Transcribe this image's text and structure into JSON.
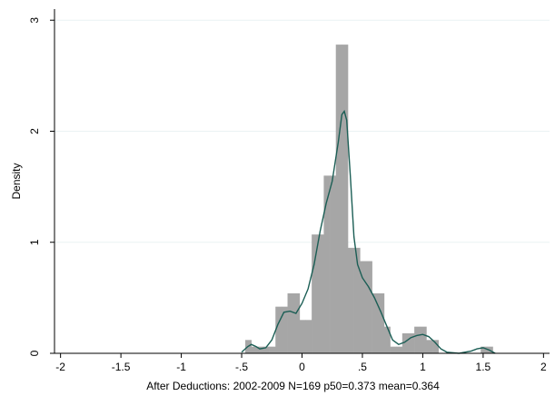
{
  "chart_data": {
    "type": "bar",
    "subtype": "histogram-with-density",
    "xlabel": "After Deductions: 2002-2009 N=169 p50=0.373 mean=0.364",
    "ylabel": "Density",
    "xlim": [
      -2.05,
      2.05
    ],
    "ylim": [
      0,
      3.1
    ],
    "x_ticks": [
      -2,
      -1.5,
      -1,
      -0.5,
      0,
      0.5,
      1,
      1.5,
      2
    ],
    "x_tick_labels": [
      "-2",
      "-1.5",
      "-1",
      "-.5",
      "0",
      ".5",
      "1",
      "1.5",
      "2"
    ],
    "y_ticks": [
      0,
      1,
      2,
      3
    ],
    "y_tick_labels": [
      "0",
      "1",
      "2",
      "3"
    ],
    "grid": true,
    "colors": {
      "bars": "#a6a6a6",
      "density": "#1b5e55",
      "grid": "#eaf2f3",
      "axis": "#000000"
    },
    "bins": [
      {
        "x0": -0.47,
        "x1": -0.42,
        "density": 0.12
      },
      {
        "x0": -0.42,
        "x1": -0.37,
        "density": 0.06
      },
      {
        "x0": -0.37,
        "x1": -0.32,
        "density": 0.06
      },
      {
        "x0": -0.32,
        "x1": -0.27,
        "density": 0.06
      },
      {
        "x0": -0.27,
        "x1": -0.22,
        "density": 0.06
      },
      {
        "x0": -0.22,
        "x1": -0.17,
        "density": 0.42
      },
      {
        "x0": -0.17,
        "x1": -0.12,
        "density": 0.42
      },
      {
        "x0": -0.12,
        "x1": -0.07,
        "density": 0.54
      },
      {
        "x0": -0.07,
        "x1": -0.02,
        "density": 0.54
      },
      {
        "x0": -0.02,
        "x1": 0.03,
        "density": 0.3
      },
      {
        "x0": 0.03,
        "x1": 0.08,
        "density": 0.3
      },
      {
        "x0": 0.08,
        "x1": 0.13,
        "density": 1.07
      },
      {
        "x0": 0.13,
        "x1": 0.18,
        "density": 1.07
      },
      {
        "x0": 0.18,
        "x1": 0.23,
        "density": 1.6
      },
      {
        "x0": 0.23,
        "x1": 0.28,
        "density": 1.6
      },
      {
        "x0": 0.28,
        "x1": 0.33,
        "density": 2.78
      },
      {
        "x0": 0.33,
        "x1": 0.38,
        "density": 2.78
      },
      {
        "x0": 0.38,
        "x1": 0.43,
        "density": 0.95
      },
      {
        "x0": 0.43,
        "x1": 0.48,
        "density": 0.95
      },
      {
        "x0": 0.48,
        "x1": 0.53,
        "density": 0.83
      },
      {
        "x0": 0.53,
        "x1": 0.58,
        "density": 0.83
      },
      {
        "x0": 0.58,
        "x1": 0.63,
        "density": 0.54
      },
      {
        "x0": 0.63,
        "x1": 0.68,
        "density": 0.54
      },
      {
        "x0": 0.68,
        "x1": 0.73,
        "density": 0.24
      },
      {
        "x0": 0.73,
        "x1": 0.78,
        "density": 0.06
      },
      {
        "x0": 0.78,
        "x1": 0.83,
        "density": 0.06
      },
      {
        "x0": 0.83,
        "x1": 0.88,
        "density": 0.18
      },
      {
        "x0": 0.88,
        "x1": 0.93,
        "density": 0.18
      },
      {
        "x0": 0.93,
        "x1": 0.98,
        "density": 0.24
      },
      {
        "x0": 0.98,
        "x1": 1.03,
        "density": 0.24
      },
      {
        "x0": 1.03,
        "x1": 1.08,
        "density": 0.12
      },
      {
        "x0": 1.08,
        "x1": 1.13,
        "density": 0.12
      },
      {
        "x0": 1.48,
        "x1": 1.53,
        "density": 0.06
      },
      {
        "x0": 1.53,
        "x1": 1.58,
        "density": 0.06
      }
    ],
    "density_curve": {
      "x": [
        -0.5,
        -0.45,
        -0.42,
        -0.38,
        -0.35,
        -0.3,
        -0.25,
        -0.2,
        -0.15,
        -0.1,
        -0.05,
        0.0,
        0.05,
        0.1,
        0.15,
        0.2,
        0.25,
        0.3,
        0.33,
        0.35,
        0.37,
        0.4,
        0.43,
        0.46,
        0.5,
        0.55,
        0.6,
        0.65,
        0.7,
        0.75,
        0.8,
        0.85,
        0.9,
        0.95,
        1.0,
        1.05,
        1.1,
        1.15,
        1.2,
        1.3,
        1.4,
        1.45,
        1.5,
        1.55,
        1.6
      ],
      "y": [
        0.01,
        0.06,
        0.08,
        0.06,
        0.04,
        0.05,
        0.12,
        0.26,
        0.37,
        0.38,
        0.36,
        0.45,
        0.58,
        0.8,
        1.1,
        1.35,
        1.55,
        1.9,
        2.15,
        2.18,
        2.1,
        1.6,
        1.05,
        0.8,
        0.68,
        0.6,
        0.5,
        0.38,
        0.25,
        0.12,
        0.08,
        0.1,
        0.14,
        0.16,
        0.17,
        0.15,
        0.1,
        0.04,
        0.01,
        0.0,
        0.02,
        0.04,
        0.05,
        0.03,
        0.0
      ]
    }
  }
}
